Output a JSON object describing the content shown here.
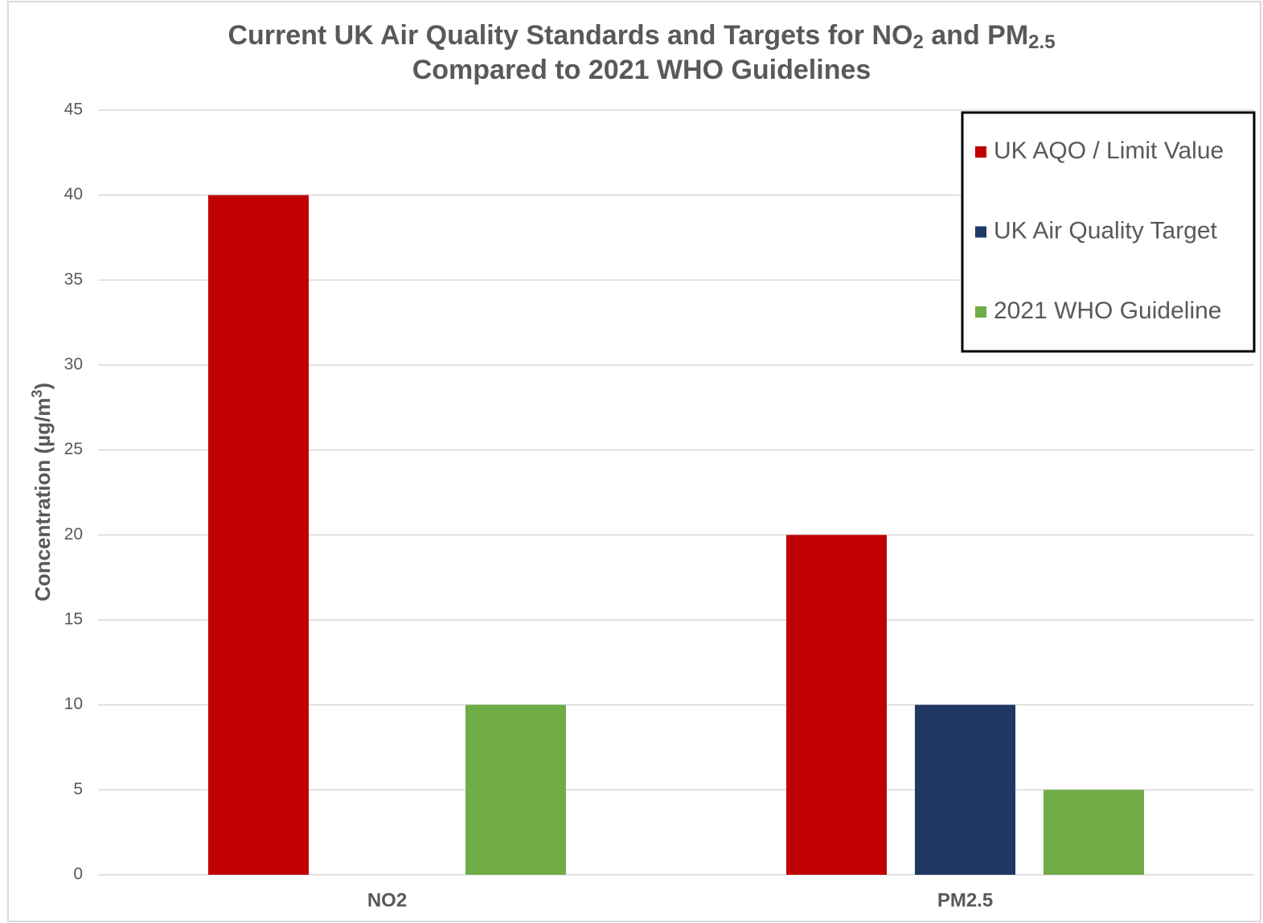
{
  "chart_data": {
    "type": "bar",
    "title": [
      "Current UK Air Quality Standards and Targets for NO",
      "2",
      " and PM",
      "2.5",
      "Compared to 2021 WHO Guidelines"
    ],
    "y_label": [
      "Concentration (µg/m",
      "3",
      ")"
    ],
    "categories": [
      "NO2",
      "PM2.5"
    ],
    "series": [
      {
        "name": "UK AQO / Limit Value",
        "color": "#c00000",
        "values": [
          40,
          20
        ]
      },
      {
        "name": "UK Air Quality Target",
        "color": "#1f3864",
        "values": [
          null,
          10
        ]
      },
      {
        "name": "2021 WHO Guideline",
        "color": "#70ad47",
        "values": [
          10,
          5
        ]
      }
    ],
    "ylim": [
      0,
      45
    ],
    "yticks": [
      0,
      5,
      10,
      15,
      20,
      25,
      30,
      35,
      40,
      45
    ],
    "grid": true,
    "legend": "top-right"
  }
}
